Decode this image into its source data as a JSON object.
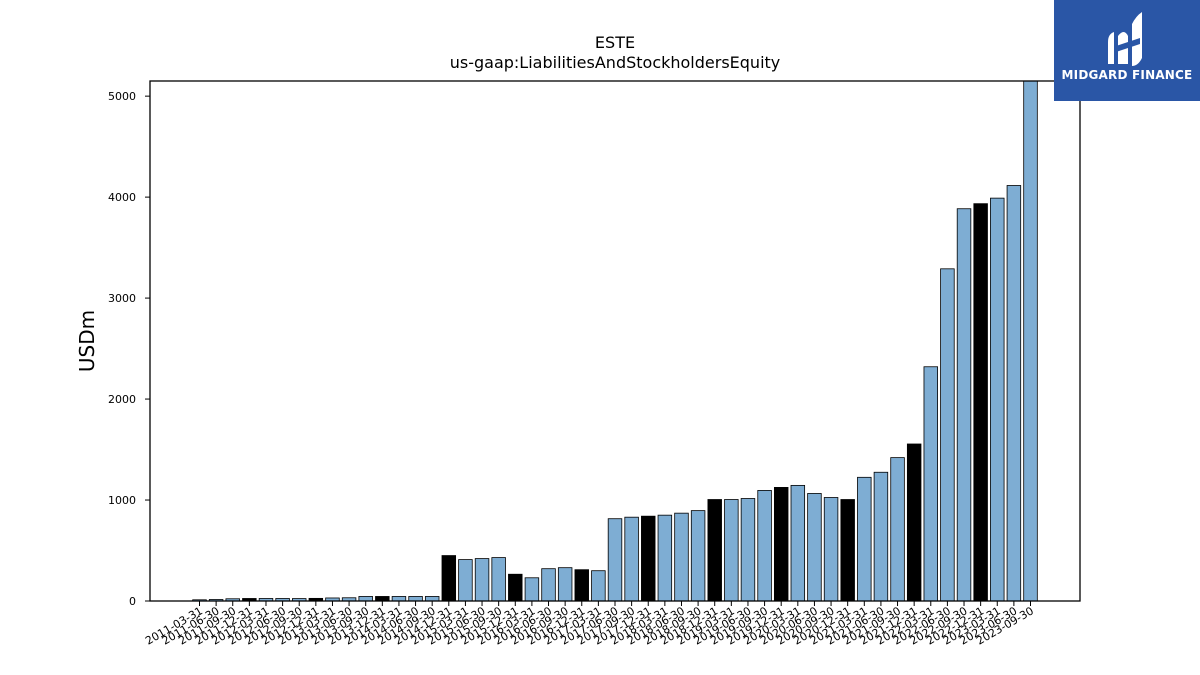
{
  "logo": {
    "text": "MIDGARD FINANCE",
    "icon": "mf-monogram-icon",
    "background": "#2a56a6"
  },
  "chart_data": {
    "type": "bar",
    "title": "ESTE",
    "subtitle": "us-gaap:LiabilitiesAndStockholdersEquity",
    "ylabel": "USDm",
    "xlabel": "",
    "ylim": [
      0,
      5150
    ],
    "yticks": [
      0,
      1000,
      2000,
      3000,
      4000,
      5000
    ],
    "grid": false,
    "colors": {
      "quarter": "#7eadd3",
      "fiscal_year_end": "#000000"
    },
    "categories": [
      "2011-03-31",
      "2011-06-30",
      "2011-09-30",
      "2011-12-31",
      "2012-03-31",
      "2012-06-30",
      "2012-09-30",
      "2012-12-31",
      "2013-03-31",
      "2013-06-30",
      "2013-09-30",
      "2013-12-31",
      "2014-03-31",
      "2014-06-30",
      "2014-09-30",
      "2014-12-31",
      "2015-03-31",
      "2015-06-30",
      "2015-09-30",
      "2015-12-31",
      "2016-03-31",
      "2016-06-30",
      "2016-09-30",
      "2016-12-31",
      "2017-03-31",
      "2017-06-30",
      "2017-09-30",
      "2017-12-31",
      "2018-03-31",
      "2018-06-30",
      "2018-09-30",
      "2018-12-31",
      "2019-03-31",
      "2019-06-30",
      "2019-09-30",
      "2019-12-31",
      "2020-03-31",
      "2020-06-30",
      "2020-09-30",
      "2020-12-31",
      "2021-03-31",
      "2021-06-30",
      "2021-09-30",
      "2021-12-31",
      "2022-03-31",
      "2022-06-30",
      "2022-09-30",
      "2022-12-31",
      "2023-03-31",
      "2023-06-30",
      "2023-09-30"
    ],
    "values": [
      12,
      15,
      22,
      25,
      25,
      25,
      24,
      26,
      30,
      32,
      45,
      45,
      45,
      45,
      45,
      450,
      410,
      420,
      430,
      265,
      230,
      320,
      330,
      310,
      300,
      815,
      830,
      840,
      850,
      870,
      895,
      1005,
      1005,
      1015,
      1095,
      1125,
      1145,
      1065,
      1025,
      1005,
      1225,
      1275,
      1420,
      1555,
      2320,
      3290,
      3885,
      3935,
      3990,
      4115,
      5150
    ],
    "highlight": [
      false,
      false,
      false,
      true,
      false,
      false,
      false,
      true,
      false,
      false,
      false,
      true,
      false,
      false,
      false,
      true,
      false,
      false,
      false,
      true,
      false,
      false,
      false,
      true,
      false,
      false,
      false,
      true,
      false,
      false,
      false,
      true,
      false,
      false,
      false,
      true,
      false,
      false,
      false,
      true,
      false,
      false,
      false,
      true,
      false,
      false,
      false,
      true,
      false,
      false,
      false
    ]
  }
}
